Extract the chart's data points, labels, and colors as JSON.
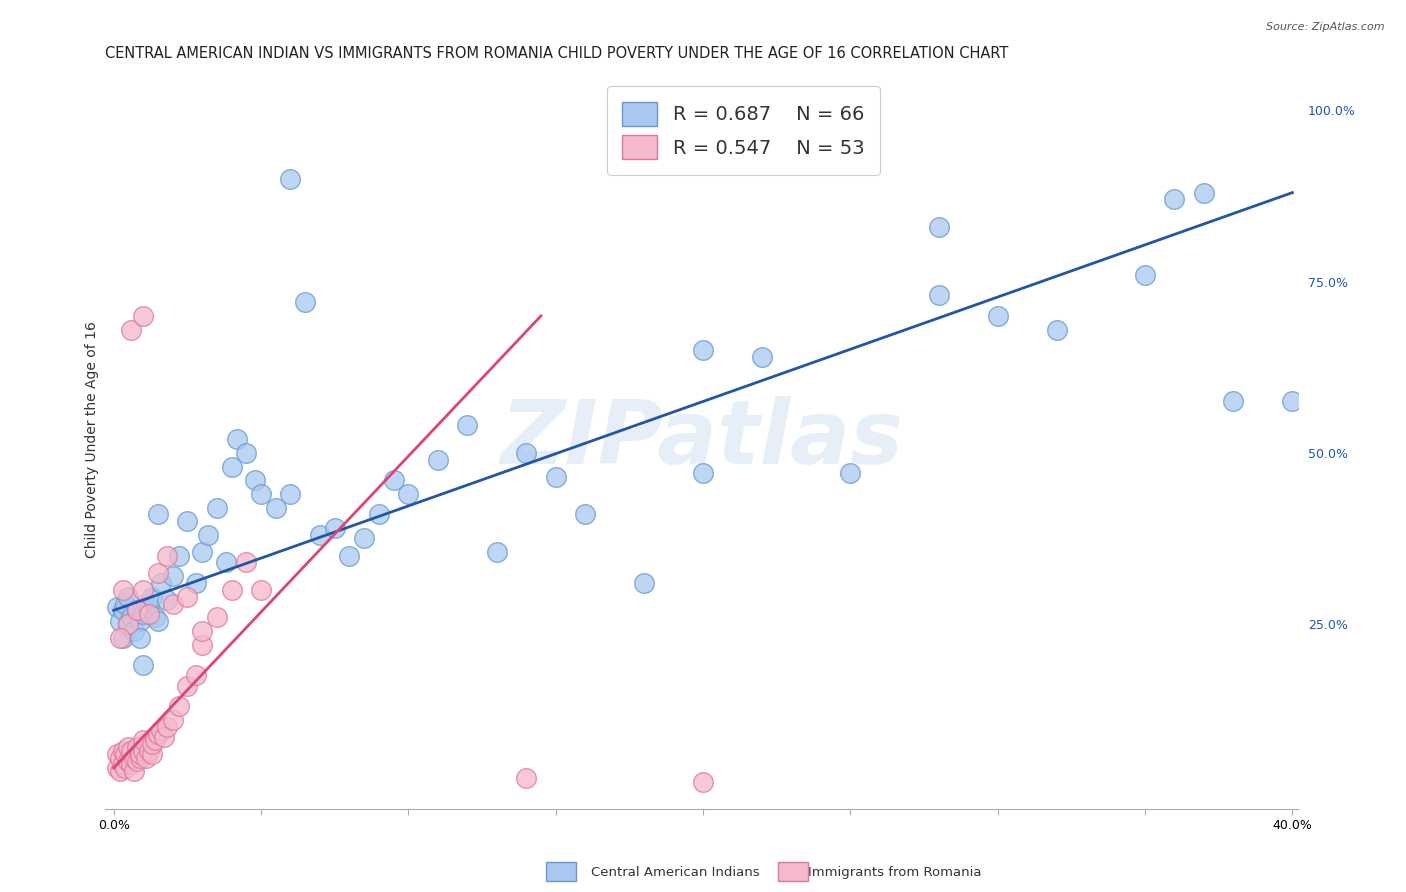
{
  "title": "CENTRAL AMERICAN INDIAN VS IMMIGRANTS FROM ROMANIA CHILD POVERTY UNDER THE AGE OF 16 CORRELATION CHART",
  "source": "Source: ZipAtlas.com",
  "ylabel": "Child Poverty Under the Age of 16",
  "xlim": [
    -0.003,
    0.402
  ],
  "ylim": [
    -0.02,
    1.06
  ],
  "xticks": [
    0.0,
    0.05,
    0.1,
    0.15,
    0.2,
    0.25,
    0.3,
    0.35,
    0.4
  ],
  "ytick_labels_right": [
    "25.0%",
    "50.0%",
    "75.0%",
    "100.0%"
  ],
  "ytick_vals_right": [
    0.25,
    0.5,
    0.75,
    1.0
  ],
  "watermark": "ZIPatlas",
  "blue_R": 0.687,
  "blue_N": 66,
  "pink_R": 0.547,
  "pink_N": 53,
  "blue_color": "#a8c8f0",
  "pink_color": "#f5b8cc",
  "blue_edge_color": "#6699cc",
  "pink_edge_color": "#dd7799",
  "blue_line_color": "#2255aa",
  "pink_line_color": "#dd4477",
  "grid_color": "#dddddd",
  "background_color": "#ffffff",
  "title_fontsize": 10.5,
  "axis_label_fontsize": 10,
  "tick_fontsize": 9,
  "legend_fontsize": 14,
  "blue_scatter_x": [
    0.001,
    0.002,
    0.003,
    0.003,
    0.004,
    0.005,
    0.005,
    0.006,
    0.007,
    0.008,
    0.009,
    0.009,
    0.01,
    0.011,
    0.012,
    0.013,
    0.014,
    0.015,
    0.016,
    0.018,
    0.02,
    0.022,
    0.025,
    0.028,
    0.03,
    0.032,
    0.035,
    0.038,
    0.04,
    0.042,
    0.045,
    0.048,
    0.05,
    0.055,
    0.06,
    0.065,
    0.07,
    0.075,
    0.08,
    0.085,
    0.09,
    0.095,
    0.1,
    0.11,
    0.12,
    0.13,
    0.14,
    0.15,
    0.16,
    0.18,
    0.2,
    0.22,
    0.25,
    0.28,
    0.3,
    0.32,
    0.35,
    0.37,
    0.38,
    0.4,
    0.01,
    0.015,
    0.06,
    0.2,
    0.28,
    0.36
  ],
  "blue_scatter_y": [
    0.275,
    0.255,
    0.27,
    0.23,
    0.28,
    0.29,
    0.25,
    0.26,
    0.24,
    0.27,
    0.255,
    0.23,
    0.265,
    0.28,
    0.275,
    0.29,
    0.26,
    0.255,
    0.31,
    0.285,
    0.32,
    0.35,
    0.4,
    0.31,
    0.355,
    0.38,
    0.42,
    0.34,
    0.48,
    0.52,
    0.5,
    0.46,
    0.44,
    0.42,
    0.44,
    0.72,
    0.38,
    0.39,
    0.35,
    0.375,
    0.41,
    0.46,
    0.44,
    0.49,
    0.54,
    0.355,
    0.5,
    0.465,
    0.41,
    0.31,
    0.47,
    0.64,
    0.47,
    0.73,
    0.7,
    0.68,
    0.76,
    0.88,
    0.575,
    0.575,
    0.19,
    0.41,
    0.9,
    0.65,
    0.83,
    0.87
  ],
  "pink_scatter_x": [
    0.001,
    0.001,
    0.002,
    0.002,
    0.003,
    0.003,
    0.004,
    0.004,
    0.005,
    0.005,
    0.006,
    0.006,
    0.007,
    0.007,
    0.008,
    0.008,
    0.009,
    0.009,
    0.01,
    0.01,
    0.011,
    0.012,
    0.013,
    0.013,
    0.014,
    0.015,
    0.016,
    0.017,
    0.018,
    0.02,
    0.022,
    0.025,
    0.028,
    0.03,
    0.035,
    0.04,
    0.045,
    0.05,
    0.005,
    0.008,
    0.01,
    0.012,
    0.015,
    0.018,
    0.02,
    0.025,
    0.03,
    0.002,
    0.003,
    0.006,
    0.01,
    0.2,
    0.14
  ],
  "pink_scatter_y": [
    0.04,
    0.06,
    0.035,
    0.055,
    0.045,
    0.065,
    0.04,
    0.06,
    0.05,
    0.07,
    0.045,
    0.065,
    0.035,
    0.055,
    0.05,
    0.07,
    0.055,
    0.06,
    0.065,
    0.08,
    0.055,
    0.065,
    0.06,
    0.075,
    0.08,
    0.09,
    0.095,
    0.085,
    0.1,
    0.11,
    0.13,
    0.16,
    0.175,
    0.22,
    0.26,
    0.3,
    0.34,
    0.3,
    0.25,
    0.27,
    0.3,
    0.265,
    0.325,
    0.35,
    0.28,
    0.29,
    0.24,
    0.23,
    0.3,
    0.68,
    0.7,
    0.02,
    0.025
  ]
}
